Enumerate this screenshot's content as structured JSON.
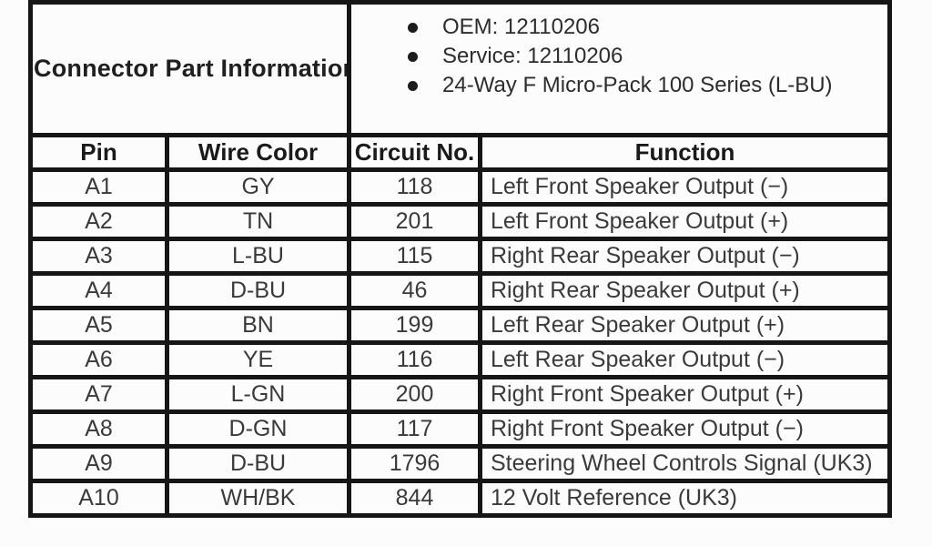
{
  "part_info": {
    "title": "Connector Part Information",
    "bullets": [
      "OEM: 12110206",
      "Service: 12110206",
      "24-Way F Micro-Pack 100 Series (L-BU)"
    ]
  },
  "pin_table": {
    "columns": [
      "Pin",
      "Wire Color",
      "Circuit No.",
      "Function"
    ],
    "rows": [
      {
        "pin": "A1",
        "wire_color": "GY",
        "circuit_no": "118",
        "function": "Left Front Speaker Output (−)"
      },
      {
        "pin": "A2",
        "wire_color": "TN",
        "circuit_no": "201",
        "function": "Left Front Speaker Output (+)"
      },
      {
        "pin": "A3",
        "wire_color": "L-BU",
        "circuit_no": "115",
        "function": "Right Rear Speaker Output (−)"
      },
      {
        "pin": "A4",
        "wire_color": "D-BU",
        "circuit_no": "46",
        "function": "Right Rear Speaker Output (+)"
      },
      {
        "pin": "A5",
        "wire_color": "BN",
        "circuit_no": "199",
        "function": "Left Rear Speaker Output (+)"
      },
      {
        "pin": "A6",
        "wire_color": "YE",
        "circuit_no": "116",
        "function": "Left Rear Speaker Output (−)"
      },
      {
        "pin": "A7",
        "wire_color": "L-GN",
        "circuit_no": "200",
        "function": "Right Front Speaker Output (+)"
      },
      {
        "pin": "A8",
        "wire_color": "D-GN",
        "circuit_no": "117",
        "function": "Right Front Speaker Output (−)"
      },
      {
        "pin": "A9",
        "wire_color": "D-BU",
        "circuit_no": "1796",
        "function": "Steering Wheel Controls Signal (UK3)"
      },
      {
        "pin": "A10",
        "wire_color": "WH/BK",
        "circuit_no": "844",
        "function": "12 Volt Reference (UK3)"
      }
    ]
  },
  "colors": {
    "border": "#161616",
    "background": "#fcfcfc",
    "header_text": "#1a1a1a",
    "body_text": "#3a3a3a"
  }
}
